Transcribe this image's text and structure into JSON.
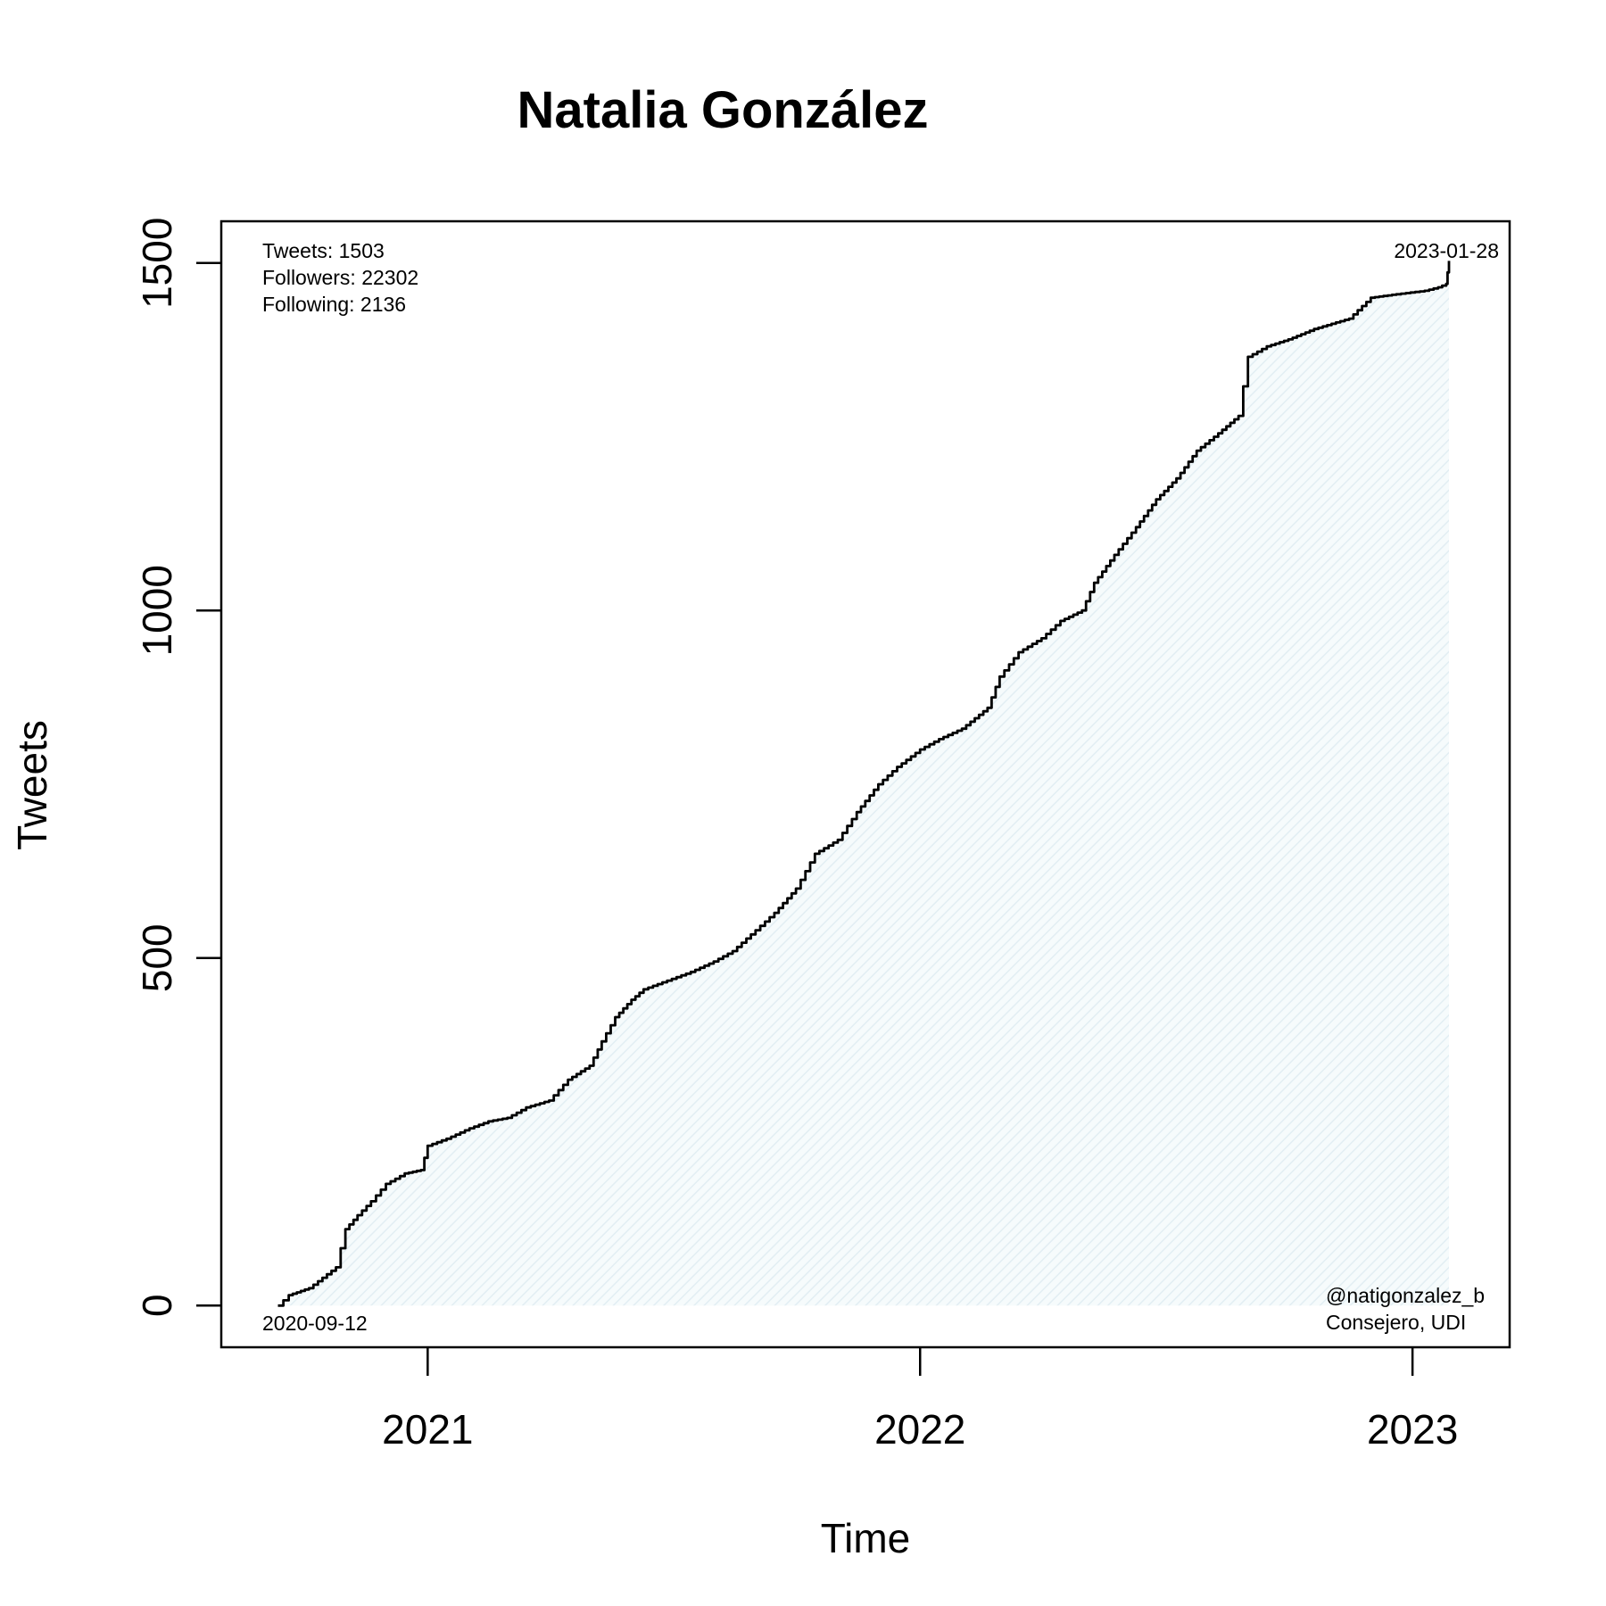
{
  "chart_data": {
    "type": "area",
    "title": "Natalia González",
    "xlabel": "Time",
    "ylabel": "Tweets",
    "ylim": [
      -60,
      1560
    ],
    "xlim": [
      "2020-08-01",
      "2023-03-14"
    ],
    "y_ticks": [
      0,
      500,
      1000,
      1500
    ],
    "x_ticks": [
      {
        "date": "2021-01-01",
        "label": "2021"
      },
      {
        "date": "2022-01-01",
        "label": "2022"
      },
      {
        "date": "2023-01-01",
        "label": "2023"
      }
    ],
    "grid": false,
    "fill_color": "#e8f4f8",
    "line_color": "#000000",
    "stats": {
      "tweets": "Tweets: 1503",
      "followers": "Followers: 22302",
      "following": "Following: 2136"
    },
    "start_label": "2020-09-12",
    "end_label": "2023-01-28",
    "handle": "@natigonzalez_b",
    "role": "Consejero, UDI",
    "series": [
      {
        "points": [
          [
            "2020-09-12",
            0
          ],
          [
            "2020-09-20",
            15
          ],
          [
            "2020-10-05",
            25
          ],
          [
            "2020-10-15",
            40
          ],
          [
            "2020-10-25",
            55
          ],
          [
            "2020-11-01",
            110
          ],
          [
            "2020-11-10",
            130
          ],
          [
            "2020-11-20",
            150
          ],
          [
            "2020-12-01",
            175
          ],
          [
            "2020-12-15",
            190
          ],
          [
            "2020-12-27",
            195
          ],
          [
            "2021-01-01",
            230
          ],
          [
            "2021-01-15",
            240
          ],
          [
            "2021-02-01",
            255
          ],
          [
            "2021-02-15",
            265
          ],
          [
            "2021-03-01",
            270
          ],
          [
            "2021-03-15",
            285
          ],
          [
            "2021-04-01",
            295
          ],
          [
            "2021-04-15",
            325
          ],
          [
            "2021-05-01",
            345
          ],
          [
            "2021-05-10",
            380
          ],
          [
            "2021-05-20",
            415
          ],
          [
            "2021-06-01",
            440
          ],
          [
            "2021-06-10",
            455
          ],
          [
            "2021-07-01",
            470
          ],
          [
            "2021-07-15",
            480
          ],
          [
            "2021-08-01",
            495
          ],
          [
            "2021-08-15",
            510
          ],
          [
            "2021-09-01",
            540
          ],
          [
            "2021-09-15",
            565
          ],
          [
            "2021-10-01",
            600
          ],
          [
            "2021-10-15",
            650
          ],
          [
            "2021-11-01",
            670
          ],
          [
            "2021-11-15",
            710
          ],
          [
            "2021-12-01",
            750
          ],
          [
            "2021-12-15",
            775
          ],
          [
            "2022-01-01",
            800
          ],
          [
            "2022-01-15",
            815
          ],
          [
            "2022-02-01",
            830
          ],
          [
            "2022-02-20",
            860
          ],
          [
            "2022-03-01",
            905
          ],
          [
            "2022-03-15",
            940
          ],
          [
            "2022-04-01",
            960
          ],
          [
            "2022-04-15",
            985
          ],
          [
            "2022-05-01",
            1000
          ],
          [
            "2022-05-10",
            1040
          ],
          [
            "2022-05-25",
            1080
          ],
          [
            "2022-06-10",
            1120
          ],
          [
            "2022-06-25",
            1160
          ],
          [
            "2022-07-10",
            1190
          ],
          [
            "2022-07-25",
            1230
          ],
          [
            "2022-08-10",
            1255
          ],
          [
            "2022-08-25",
            1280
          ],
          [
            "2022-09-01",
            1365
          ],
          [
            "2022-09-15",
            1380
          ],
          [
            "2022-10-01",
            1390
          ],
          [
            "2022-10-20",
            1405
          ],
          [
            "2022-11-15",
            1420
          ],
          [
            "2022-12-01",
            1450
          ],
          [
            "2022-12-20",
            1455
          ],
          [
            "2023-01-10",
            1460
          ],
          [
            "2023-01-20",
            1465
          ],
          [
            "2023-01-26",
            1470
          ],
          [
            "2023-01-28",
            1503
          ]
        ]
      }
    ]
  }
}
